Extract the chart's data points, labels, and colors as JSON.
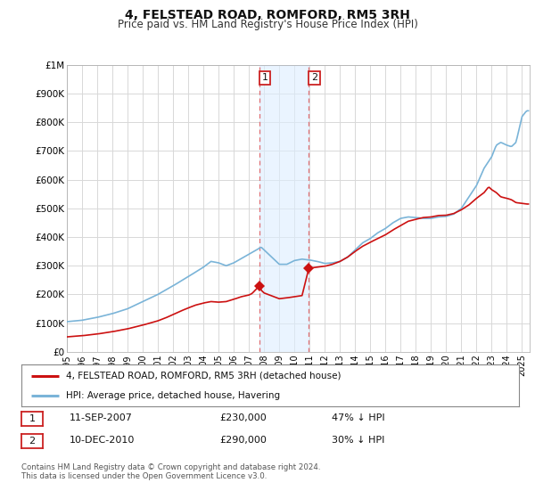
{
  "title": "4, FELSTEAD ROAD, ROMFORD, RM5 3RH",
  "subtitle": "Price paid vs. HM Land Registry's House Price Index (HPI)",
  "title_fontsize": 10,
  "subtitle_fontsize": 8.5,
  "ylim": [
    0,
    1000000
  ],
  "ytick_labels": [
    "£0",
    "£100K",
    "£200K",
    "£300K",
    "£400K",
    "£500K",
    "£600K",
    "£700K",
    "£800K",
    "£900K",
    "£1M"
  ],
  "ytick_values": [
    0,
    100000,
    200000,
    300000,
    400000,
    500000,
    600000,
    700000,
    800000,
    900000,
    1000000
  ],
  "background_color": "#ffffff",
  "plot_background": "#ffffff",
  "grid_color": "#d8d8d8",
  "transaction1_date_num": 2007.69,
  "transaction1_label": "1",
  "transaction1_price": 230000,
  "transaction1_text": "11-SEP-2007",
  "transaction1_pct": "47% ↓ HPI",
  "transaction2_date_num": 2010.94,
  "transaction2_label": "2",
  "transaction2_price": 290000,
  "transaction2_text": "10-DEC-2010",
  "transaction2_pct": "30% ↓ HPI",
  "shade_color": "#ddeeff",
  "shade_alpha": 0.6,
  "vline_color": "#e05050",
  "vline_alpha": 0.8,
  "vline_style": "--",
  "hpi_line_color": "#7ab4d8",
  "price_line_color": "#cc1111",
  "legend_label_price": "4, FELSTEAD ROAD, ROMFORD, RM5 3RH (detached house)",
  "legend_label_hpi": "HPI: Average price, detached house, Havering",
  "footer_text": "Contains HM Land Registry data © Crown copyright and database right 2024.\nThis data is licensed under the Open Government Licence v3.0.",
  "xlim_start": 1995.0,
  "xlim_end": 2025.5,
  "xtick_years": [
    1995,
    1996,
    1997,
    1998,
    1999,
    2000,
    2001,
    2002,
    2003,
    2004,
    2005,
    2006,
    2007,
    2008,
    2009,
    2010,
    2011,
    2012,
    2013,
    2014,
    2015,
    2016,
    2017,
    2018,
    2019,
    2020,
    2021,
    2022,
    2023,
    2024,
    2025
  ]
}
